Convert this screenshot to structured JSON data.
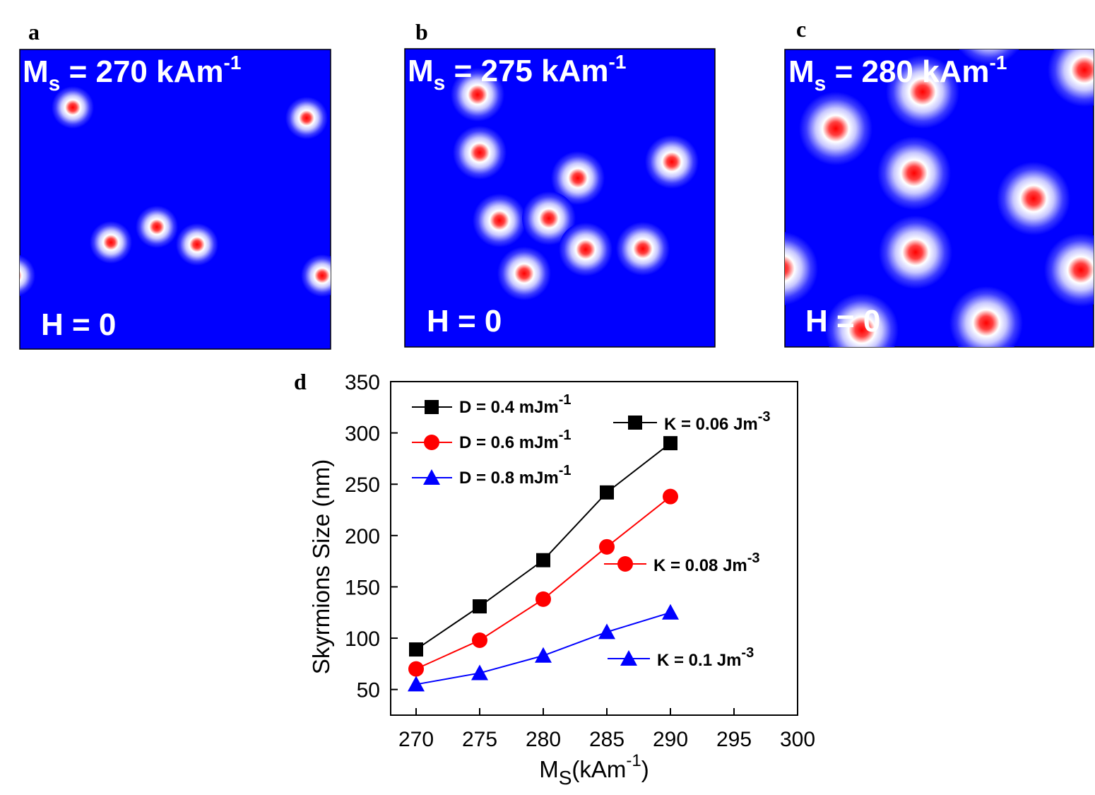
{
  "panels": [
    {
      "label": "a",
      "ms": {
        "text": "M",
        "sub": "s",
        "rest": " = 270 kAm",
        "sup": "-1"
      },
      "field": "H = 0"
    },
    {
      "label": "b",
      "ms": {
        "text": "M",
        "sub": "s",
        "rest": " = 275 kAm",
        "sup": "-1"
      },
      "field": "H = 0"
    },
    {
      "label": "c",
      "ms": {
        "text": "M",
        "sub": "s",
        "rest": " = 280 kAm",
        "sup": "-1"
      },
      "field": "H = 0"
    }
  ],
  "chart_data": {
    "type": "line",
    "label": "d",
    "y_label": "Skyrmions Size (nm)",
    "x_label": {
      "text": "M",
      "sub": "S",
      "mid": "(kAm",
      "sup": "-1",
      "end": ")"
    },
    "x": [
      270,
      275,
      280,
      285,
      290
    ],
    "xlim": [
      268,
      300
    ],
    "xticks": [
      270,
      275,
      280,
      285,
      290,
      295,
      300
    ],
    "ylim": [
      25,
      350
    ],
    "yticks": [
      50,
      100,
      150,
      200,
      250,
      300,
      350
    ],
    "series": [
      {
        "name": {
          "text": "D = 0.4 mJm",
          "sup": "-1"
        },
        "annotation": {
          "text": "K = 0.06 Jm",
          "sup": "-3"
        },
        "color": "#000000",
        "marker": "square",
        "values": [
          89,
          131,
          176,
          242,
          290
        ]
      },
      {
        "name": {
          "text": "D = 0.6 mJm",
          "sup": "-1"
        },
        "annotation": {
          "text": "K = 0.08 Jm",
          "sup": "-3"
        },
        "color": "#ff0000",
        "marker": "circle",
        "values": [
          70,
          98,
          138,
          189,
          238
        ]
      },
      {
        "name": {
          "text": "D = 0.8 mJm",
          "sup": "-1"
        },
        "annotation": {
          "text": "K = 0.1 Jm",
          "sup": "-3"
        },
        "color": "#0000ff",
        "marker": "triangle",
        "values": [
          55,
          66,
          83,
          106,
          125
        ]
      }
    ]
  }
}
